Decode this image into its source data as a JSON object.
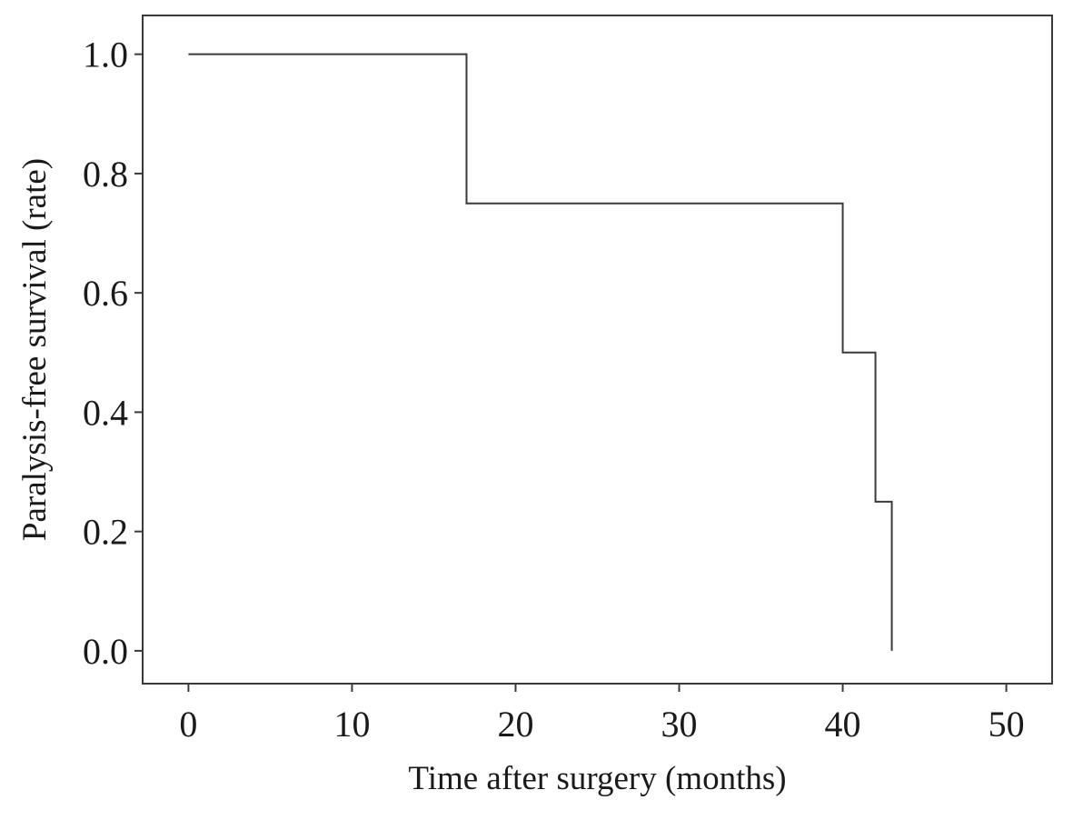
{
  "chart_data": {
    "type": "line",
    "subtype": "step",
    "title": "",
    "xlabel": "Time after surgery (months)",
    "ylabel": "Paralysis-free survival (rate)",
    "xlim": [
      -2.8,
      52.8
    ],
    "ylim": [
      -0.055,
      1.065
    ],
    "xticks": [
      0,
      10,
      20,
      30,
      40,
      50
    ],
    "xtick_labels": [
      "0",
      "10",
      "20",
      "30",
      "40",
      "50"
    ],
    "yticks": [
      0.0,
      0.2,
      0.4,
      0.6,
      0.8,
      1.0
    ],
    "ytick_labels": [
      "0.0",
      "0.2",
      "0.4",
      "0.6",
      "0.8",
      "1.0"
    ],
    "grid": false,
    "legend": "none",
    "series": [
      {
        "x": [
          0,
          17,
          40,
          42,
          43
        ],
        "y": [
          1.0,
          0.75,
          0.5,
          0.25,
          0.0
        ]
      }
    ],
    "colors": {
      "line": "#3a3a3a",
      "frame": "#3a3a3a",
      "text": "#1a1a1a"
    }
  }
}
